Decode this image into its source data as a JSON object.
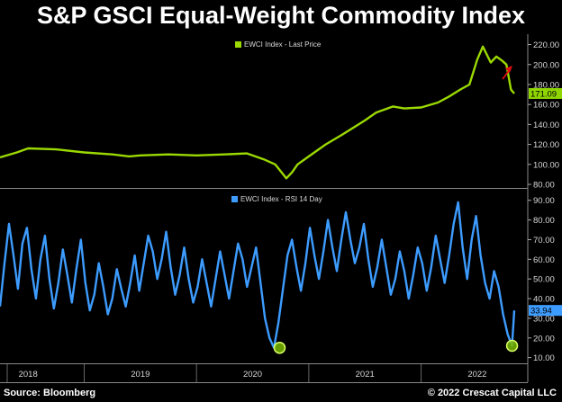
{
  "title": "S&P GSCI Equal-Weight Commodity Index",
  "footer": {
    "source": "Source: Bloomberg",
    "copyright": "© 2022 Crescat Capital LLC"
  },
  "colors": {
    "price": "#9bd900",
    "rsi": "#3d9cff",
    "marker": "#7ab800",
    "arrow": "#e01010",
    "price_label_bg": "#8fd600",
    "rsi_label_bg": "#3d9cff"
  },
  "chart_data": [
    {
      "type": "line",
      "legend": "EWCI Index - Last Price",
      "last_value_label": "171.09",
      "ylim": [
        80,
        225
      ],
      "yticks": [
        80,
        100,
        120,
        140,
        160,
        180,
        200,
        220
      ],
      "ytick_labels": [
        "80.00",
        "100.00",
        "120.00",
        "140.00",
        "160.00",
        "180.00",
        "200.00",
        "220.00"
      ],
      "x_range": [
        2017.75,
        2022.45
      ],
      "grid": false,
      "series": [
        {
          "x": [
            2017.75,
            2017.9,
            2018.0,
            2018.25,
            2018.5,
            2018.75,
            2018.9,
            2019.0,
            2019.25,
            2019.5,
            2019.75,
            2019.95,
            2020.1,
            2020.2,
            2020.3,
            2020.35,
            2020.4,
            2020.5,
            2020.65,
            2020.8,
            2021.0,
            2021.1,
            2021.25,
            2021.35,
            2021.5,
            2021.65,
            2021.75,
            2021.85,
            2021.93,
            2022.0,
            2022.05,
            2022.12,
            2022.17,
            2022.22,
            2022.26,
            2022.3,
            2022.33
          ],
          "values": [
            107,
            112,
            116,
            115,
            112,
            110,
            108,
            109,
            110,
            109,
            110,
            111,
            105,
            100,
            86,
            92,
            100,
            108,
            120,
            130,
            144,
            152,
            158,
            156,
            157,
            162,
            168,
            175,
            180,
            205,
            218,
            202,
            208,
            204,
            200,
            175,
            171
          ]
        }
      ]
    },
    {
      "type": "line",
      "legend": "EWCI Index - RSI 14 Day",
      "last_value_label": "33.94",
      "ylim": [
        8,
        94
      ],
      "yticks": [
        10,
        20,
        30,
        40,
        50,
        60,
        70,
        80,
        90
      ],
      "ytick_labels": [
        "10.00",
        "20.00",
        "30.00",
        "40.00",
        "50.00",
        "60.00",
        "70.00",
        "80.00",
        "90.00"
      ],
      "x_range": [
        2017.75,
        2022.45
      ],
      "xtick_labels": [
        "2018",
        "2019",
        "2020",
        "2021",
        "2022"
      ],
      "xticks": [
        2018.0,
        2019.0,
        2020.0,
        2021.0,
        2022.0
      ],
      "grid": false,
      "series": [
        {
          "x": [
            2017.75,
            2017.79,
            2017.83,
            2017.87,
            2017.91,
            2017.95,
            2017.99,
            2018.03,
            2018.07,
            2018.11,
            2018.15,
            2018.19,
            2018.23,
            2018.27,
            2018.31,
            2018.35,
            2018.39,
            2018.43,
            2018.47,
            2018.51,
            2018.55,
            2018.59,
            2018.63,
            2018.67,
            2018.71,
            2018.75,
            2018.79,
            2018.83,
            2018.87,
            2018.91,
            2018.95,
            2018.99,
            2019.03,
            2019.07,
            2019.11,
            2019.15,
            2019.19,
            2019.23,
            2019.27,
            2019.31,
            2019.35,
            2019.39,
            2019.43,
            2019.47,
            2019.51,
            2019.55,
            2019.59,
            2019.63,
            2019.67,
            2019.71,
            2019.75,
            2019.79,
            2019.83,
            2019.87,
            2019.91,
            2019.95,
            2019.99,
            2020.03,
            2020.07,
            2020.11,
            2020.15,
            2020.19,
            2020.23,
            2020.27,
            2020.31,
            2020.35,
            2020.39,
            2020.43,
            2020.47,
            2020.51,
            2020.55,
            2020.59,
            2020.63,
            2020.67,
            2020.71,
            2020.75,
            2020.79,
            2020.83,
            2020.87,
            2020.91,
            2020.95,
            2020.99,
            2021.03,
            2021.07,
            2021.11,
            2021.15,
            2021.19,
            2021.23,
            2021.27,
            2021.31,
            2021.35,
            2021.39,
            2021.43,
            2021.47,
            2021.51,
            2021.55,
            2021.59,
            2021.63,
            2021.67,
            2021.71,
            2021.75,
            2021.79,
            2021.83,
            2021.87,
            2021.91,
            2021.95,
            2021.99,
            2022.03,
            2022.07,
            2022.11,
            2022.15,
            2022.19,
            2022.23,
            2022.27,
            2022.31,
            2022.33
          ],
          "values": [
            36,
            58,
            78,
            62,
            45,
            68,
            76,
            55,
            40,
            60,
            72,
            50,
            35,
            48,
            65,
            52,
            38,
            55,
            70,
            48,
            34,
            42,
            58,
            46,
            32,
            40,
            55,
            45,
            36,
            48,
            62,
            44,
            58,
            72,
            64,
            50,
            60,
            74,
            56,
            42,
            52,
            66,
            50,
            38,
            46,
            60,
            48,
            36,
            50,
            64,
            52,
            40,
            54,
            68,
            60,
            46,
            56,
            66,
            48,
            30,
            20,
            15,
            28,
            45,
            62,
            70,
            56,
            44,
            58,
            76,
            62,
            50,
            64,
            80,
            66,
            54,
            70,
            84,
            70,
            58,
            66,
            78,
            60,
            46,
            56,
            70,
            56,
            42,
            50,
            64,
            54,
            40,
            52,
            66,
            58,
            44,
            56,
            72,
            60,
            48,
            62,
            78,
            89,
            66,
            50,
            70,
            82,
            62,
            48,
            40,
            54,
            46,
            32,
            22,
            16,
            34
          ]
        }
      ],
      "markers": [
        {
          "x": 2020.24,
          "value": 15
        },
        {
          "x": 2022.31,
          "value": 16
        }
      ]
    }
  ]
}
